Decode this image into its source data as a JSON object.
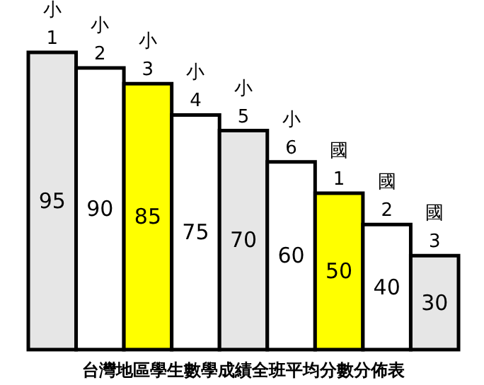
{
  "chart_data": {
    "type": "bar",
    "title": "台灣地區學生數學成績全班平均分數分佈表",
    "categories": [
      "小1",
      "小2",
      "小3",
      "小4",
      "小5",
      "小6",
      "國1",
      "國2",
      "國3"
    ],
    "values": [
      95,
      90,
      85,
      75,
      70,
      60,
      50,
      40,
      30
    ],
    "colors": [
      "#e6e6e6",
      "#ffffff",
      "#ffff00",
      "#ffffff",
      "#e6e6e6",
      "#ffffff",
      "#ffff00",
      "#ffffff",
      "#e6e6e6"
    ],
    "data_labels": true
  }
}
